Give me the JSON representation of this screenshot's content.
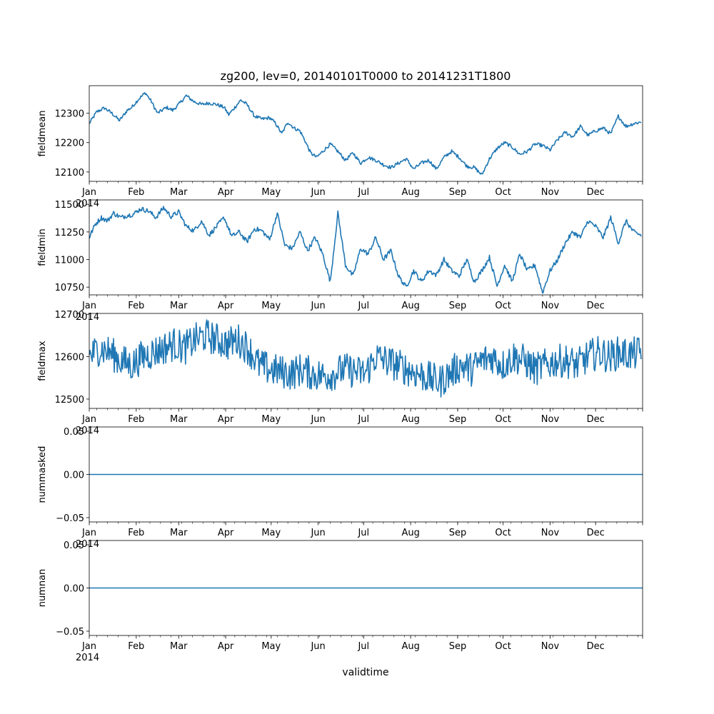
{
  "title": "zg200, lev=0, 20140101T0000 to 20141231T1800",
  "xlabel": "validtime",
  "year_label": "2014",
  "line_color": "#1f77b4",
  "chart_data": [
    {
      "type": "line",
      "ylabel": "fieldmean",
      "ylim": [
        12068,
        12394
      ],
      "yticks": [
        12100,
        12200,
        12300
      ],
      "ytick_labels": [
        "12100",
        "12200",
        "12300"
      ],
      "x_unit": "day of year 2014",
      "xlim": [
        1,
        366
      ],
      "x": [
        1,
        6,
        11,
        16,
        21,
        26,
        29,
        33,
        38,
        42,
        46,
        52,
        56,
        60,
        65,
        70,
        75,
        80,
        85,
        90,
        93,
        97,
        101,
        105,
        110,
        115,
        120,
        124,
        128,
        132,
        136,
        140,
        143,
        147,
        151,
        155,
        160,
        165,
        170,
        175,
        180,
        185,
        190,
        195,
        200,
        205,
        210,
        215,
        220,
        225,
        230,
        235,
        240,
        245,
        250,
        255,
        260,
        265,
        270,
        275,
        280,
        285,
        290,
        295,
        300,
        305,
        310,
        315,
        320,
        325,
        330,
        335,
        340,
        345,
        350,
        355,
        360,
        365
      ],
      "values": [
        12265,
        12305,
        12318,
        12300,
        12275,
        12310,
        12320,
        12345,
        12370,
        12340,
        12300,
        12320,
        12310,
        12330,
        12360,
        12340,
        12330,
        12335,
        12330,
        12320,
        12295,
        12320,
        12345,
        12330,
        12290,
        12280,
        12285,
        12265,
        12230,
        12270,
        12250,
        12240,
        12210,
        12165,
        12150,
        12170,
        12195,
        12170,
        12140,
        12165,
        12130,
        12150,
        12140,
        12125,
        12115,
        12130,
        12145,
        12110,
        12130,
        12140,
        12110,
        12150,
        12170,
        12150,
        12120,
        12115,
        12090,
        12145,
        12180,
        12200,
        12185,
        12160,
        12170,
        12195,
        12190,
        12175,
        12210,
        12235,
        12220,
        12255,
        12225,
        12240,
        12250,
        12230,
        12290,
        12255,
        12265,
        12270
      ]
    },
    {
      "type": "line",
      "ylabel": "fieldmin",
      "ylim": [
        10680,
        11540
      ],
      "yticks": [
        10750,
        11000,
        11250,
        11500
      ],
      "ytick_labels": [
        "10750",
        "11000",
        "11250",
        "11500"
      ],
      "x_unit": "day of year 2014",
      "xlim": [
        1,
        366
      ],
      "x": [
        1,
        5,
        9,
        13,
        17,
        22,
        26,
        30,
        35,
        40,
        45,
        50,
        55,
        60,
        65,
        70,
        75,
        80,
        85,
        90,
        95,
        100,
        105,
        110,
        115,
        120,
        125,
        130,
        135,
        140,
        145,
        150,
        155,
        160,
        165,
        170,
        175,
        180,
        185,
        190,
        195,
        200,
        205,
        210,
        215,
        220,
        225,
        230,
        235,
        240,
        245,
        250,
        255,
        260,
        265,
        270,
        275,
        280,
        285,
        290,
        295,
        300,
        305,
        310,
        315,
        320,
        325,
        330,
        335,
        340,
        345,
        350,
        355,
        360,
        365
      ],
      "values": [
        11200,
        11320,
        11380,
        11350,
        11420,
        11380,
        11400,
        11410,
        11460,
        11440,
        11380,
        11470,
        11390,
        11430,
        11300,
        11260,
        11350,
        11220,
        11300,
        11380,
        11210,
        11250,
        11160,
        11280,
        11260,
        11180,
        11420,
        11130,
        11100,
        11250,
        11080,
        11200,
        11050,
        10800,
        11420,
        10950,
        10850,
        11100,
        11050,
        11200,
        11000,
        11080,
        10850,
        10750,
        10900,
        10800,
        10900,
        10860,
        11000,
        10900,
        10850,
        11000,
        10800,
        10900,
        11020,
        10760,
        10950,
        10800,
        11050,
        10900,
        10950,
        10700,
        10900,
        11000,
        11150,
        11250,
        11200,
        11350,
        11300,
        11200,
        11380,
        11150,
        11350,
        11250,
        11220
      ]
    },
    {
      "type": "line",
      "ylabel": "fieldmax",
      "ylim": [
        12478,
        12702
      ],
      "yticks": [
        12500,
        12600,
        12700
      ],
      "ytick_labels": [
        "12500",
        "12600",
        "12700"
      ],
      "x_unit": "day of year 2014",
      "xlim": [
        1,
        366
      ],
      "x": [
        1,
        8,
        15,
        22,
        29,
        36,
        43,
        50,
        57,
        64,
        71,
        78,
        85,
        92,
        99,
        106,
        113,
        120,
        127,
        134,
        141,
        148,
        155,
        162,
        169,
        176,
        183,
        190,
        197,
        204,
        211,
        218,
        225,
        232,
        239,
        246,
        253,
        260,
        267,
        274,
        281,
        288,
        295,
        302,
        309,
        316,
        323,
        330,
        337,
        344,
        351,
        358,
        365
      ],
      "values": [
        12600,
        12620,
        12610,
        12590,
        12580,
        12600,
        12610,
        12620,
        12630,
        12620,
        12640,
        12650,
        12640,
        12630,
        12640,
        12620,
        12580,
        12570,
        12565,
        12560,
        12570,
        12560,
        12555,
        12560,
        12570,
        12565,
        12560,
        12600,
        12590,
        12580,
        12570,
        12560,
        12550,
        12540,
        12560,
        12580,
        12570,
        12590,
        12600,
        12580,
        12600,
        12590,
        12570,
        12580,
        12590,
        12590,
        12580,
        12600,
        12610,
        12600,
        12610,
        12605,
        12610
      ],
      "noise_amplitude": 40
    },
    {
      "type": "line",
      "ylabel": "nummasked",
      "ylim": [
        -0.055,
        0.055
      ],
      "yticks": [
        -0.05,
        0.0,
        0.05
      ],
      "ytick_labels": [
        "−0.05",
        "0.00",
        "0.05"
      ],
      "x_unit": "day of year 2014",
      "xlim": [
        1,
        366
      ],
      "x": [
        1,
        366
      ],
      "values": [
        0,
        0
      ]
    },
    {
      "type": "line",
      "ylabel": "numnan",
      "ylim": [
        -0.055,
        0.055
      ],
      "yticks": [
        -0.05,
        0.0,
        0.05
      ],
      "ytick_labels": [
        "−0.05",
        "0.00",
        "0.05"
      ],
      "x_unit": "day of year 2014",
      "xlim": [
        1,
        366
      ],
      "x": [
        1,
        366
      ],
      "values": [
        0,
        0
      ]
    }
  ],
  "month_labels": [
    "Jan",
    "Feb",
    "Mar",
    "Apr",
    "May",
    "Jun",
    "Jul",
    "Aug",
    "Sep",
    "Oct",
    "Nov",
    "Dec"
  ],
  "month_start_days": [
    1,
    32,
    60,
    91,
    121,
    152,
    182,
    213,
    244,
    274,
    305,
    335
  ]
}
